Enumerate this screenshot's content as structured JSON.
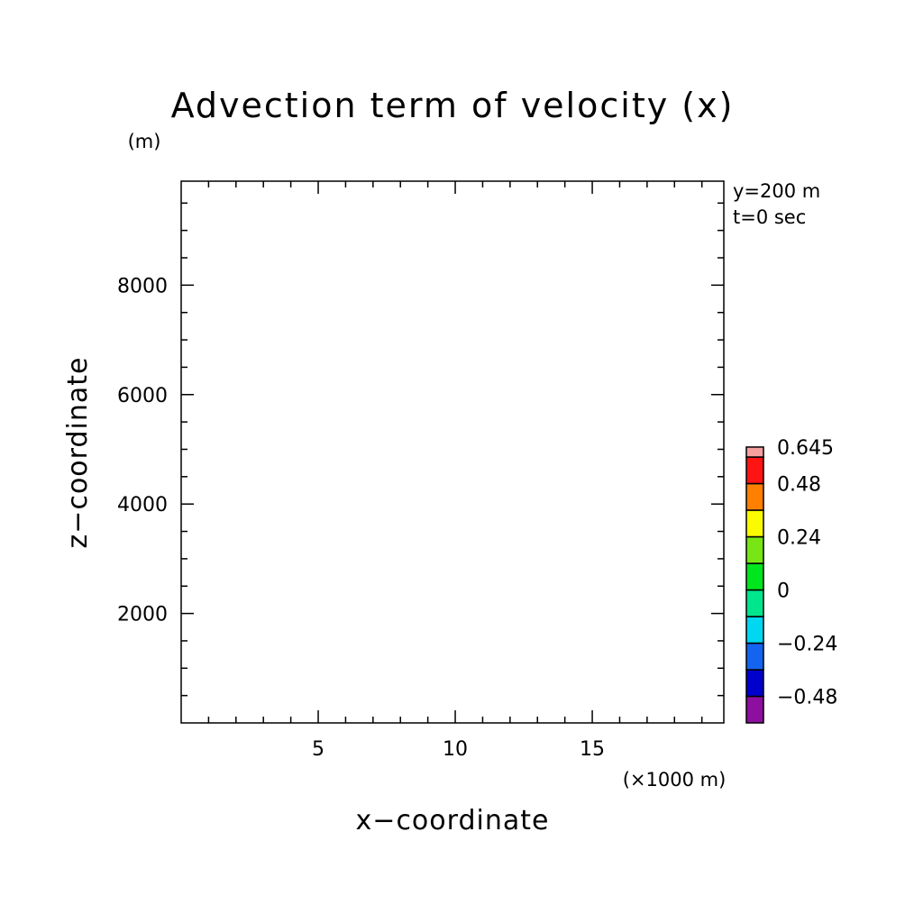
{
  "chart_data": {
    "type": "heatmap",
    "title": "Advection term of velocity (x)",
    "xlabel": "x−coordinate",
    "ylabel": "z−coordinate",
    "x_unit": "(×1000 m)",
    "y_unit": "(m)",
    "xlim": [
      0,
      19.8
    ],
    "ylim": [
      0,
      9900
    ],
    "x_major_ticks": [
      5,
      10,
      15
    ],
    "x_tick_labels": [
      "5",
      "10",
      "15"
    ],
    "x_minor_step": 1,
    "y_major_ticks": [
      2000,
      4000,
      6000,
      8000
    ],
    "y_tick_labels": [
      "2000",
      "4000",
      "6000",
      "8000"
    ],
    "y_minor_step": 500,
    "annotations": [
      "y=200 m",
      "t=0 sec"
    ],
    "field_values": [],
    "colorbar": {
      "levels": [
        -0.6,
        -0.48,
        -0.36,
        -0.24,
        -0.12,
        0,
        0.12,
        0.24,
        0.36,
        0.48,
        0.6,
        0.645
      ],
      "colors": [
        "#8c0fa0",
        "#0000cd",
        "#1464f0",
        "#00d7f0",
        "#00e68c",
        "#00e61e",
        "#78e614",
        "#fafa00",
        "#ff8000",
        "#ff1414",
        "#f5a0a0"
      ],
      "labeled_levels": [
        0.645,
        0.48,
        0.24,
        0,
        -0.24,
        -0.48
      ],
      "labels": [
        "0.645",
        "0.48",
        "0.24",
        "0",
        "−0.24",
        "−0.48"
      ]
    }
  }
}
